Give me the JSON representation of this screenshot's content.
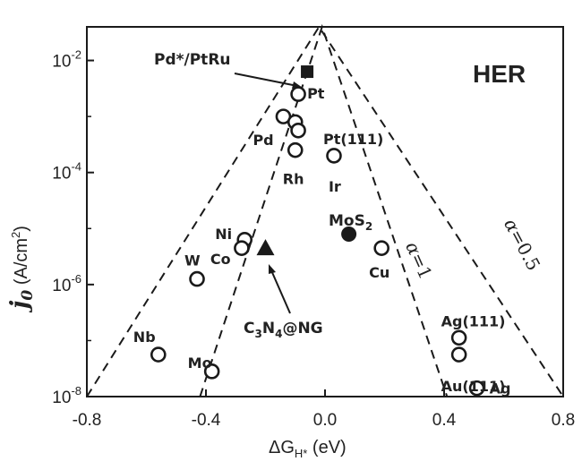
{
  "chart_data": {
    "type": "scatter",
    "panel_label": "HER",
    "xlabel": {
      "main": "ΔG",
      "sub": "H*",
      "unit": " (eV)"
    },
    "ylabel": {
      "var": "j",
      "var_sub": "0",
      "unit_pre": " (A/cm",
      "unit_sup": "2",
      "unit_post": ")"
    },
    "xlim": [
      -0.8,
      0.8
    ],
    "ylim_log10": [
      -8,
      -1.4
    ],
    "y_scale": "log",
    "x_ticks": [
      {
        "v": -0.8,
        "label": "-0.8"
      },
      {
        "v": -0.4,
        "label": "-0.4"
      },
      {
        "v": 0.0,
        "label": "0.0"
      },
      {
        "v": 0.4,
        "label": "0.4"
      },
      {
        "v": 0.8,
        "label": "0.8"
      }
    ],
    "y_ticks": [
      {
        "e": -2,
        "base": "10",
        "exp": "-2"
      },
      {
        "e": -4,
        "base": "10",
        "exp": "-4"
      },
      {
        "e": -6,
        "base": "10",
        "exp": "-6"
      },
      {
        "e": -8,
        "base": "10",
        "exp": "-8"
      }
    ],
    "volcano_curves": [
      {
        "name": "α=0.5",
        "apex": [
          -0.02,
          -1.4
        ],
        "points": [
          [
            -0.8,
            -8.0
          ],
          [
            -0.02,
            -1.4
          ],
          [
            0.8,
            -8.0
          ]
        ]
      },
      {
        "name": "α=1",
        "apex": [
          -0.01,
          -1.4
        ],
        "points": [
          [
            -0.42,
            -8.0
          ],
          [
            -0.01,
            -1.4
          ],
          [
            0.41,
            -8.0
          ]
        ]
      }
    ],
    "curve_labels": [
      {
        "alpha": "α",
        "eq": "=0.5",
        "at": [
          0.6,
          -4.9
        ]
      },
      {
        "alpha": "α",
        "eq": "=1",
        "at": [
          0.27,
          -5.3
        ]
      }
    ],
    "points": [
      {
        "label": "Pt",
        "x": -0.09,
        "y": -2.6,
        "marker": "circle"
      },
      {
        "label": "Pd",
        "x": -0.14,
        "y": -3.0,
        "marker": "circle"
      },
      {
        "label": "",
        "x": -0.1,
        "y": -3.1,
        "marker": "circle"
      },
      {
        "label": "",
        "x": -0.09,
        "y": -3.25,
        "marker": "circle"
      },
      {
        "label": "Rh",
        "x": -0.1,
        "y": -3.6,
        "marker": "circle"
      },
      {
        "label": "Pt(111)",
        "x": 0.03,
        "y": -3.7,
        "marker": "circle"
      },
      {
        "label": "Ir",
        "x": 0.03,
        "y": -3.7,
        "marker": "none"
      },
      {
        "label": "Ni",
        "x": -0.27,
        "y": -5.2,
        "marker": "circle"
      },
      {
        "label": "Co",
        "x": -0.28,
        "y": -5.35,
        "marker": "circle"
      },
      {
        "label": "W",
        "x": -0.43,
        "y": -5.9,
        "marker": "circle"
      },
      {
        "label": "Nb",
        "x": -0.56,
        "y": -7.25,
        "marker": "circle"
      },
      {
        "label": "Mo",
        "x": -0.38,
        "y": -7.55,
        "marker": "circle"
      },
      {
        "label": "Cu",
        "x": 0.19,
        "y": -5.35,
        "marker": "circle"
      },
      {
        "label": "Ag(111)",
        "x": 0.45,
        "y": -6.95,
        "marker": "circle"
      },
      {
        "label": "Au(111)",
        "x": 0.45,
        "y": -7.25,
        "marker": "circle"
      },
      {
        "label": "Ag",
        "x": 0.51,
        "y": -7.85,
        "marker": "circle"
      }
    ],
    "special_points": [
      {
        "label": "Pd*/PtRu",
        "x": -0.06,
        "y": -2.2,
        "marker": "square"
      },
      {
        "label": "MoS2",
        "label_main": "MoS",
        "label_sub": "2",
        "x": 0.08,
        "y": -5.1,
        "marker": "filled-circle"
      },
      {
        "label": "C3N4@NG",
        "x": -0.2,
        "y": -5.35,
        "marker": "triangle"
      }
    ],
    "annotations": [
      {
        "text": "Pd*/PtRu",
        "arrow_to": "Pd*/PtRu"
      },
      {
        "text": "C3N4@NG",
        "parts": [
          "C",
          "3",
          "N",
          "4",
          "@NG"
        ],
        "arrow_to": "C3N4@NG"
      }
    ],
    "grid": false,
    "legend": "none"
  },
  "colors": {
    "ink": "#1a1a1a",
    "marker_fill": "#ffffff"
  }
}
